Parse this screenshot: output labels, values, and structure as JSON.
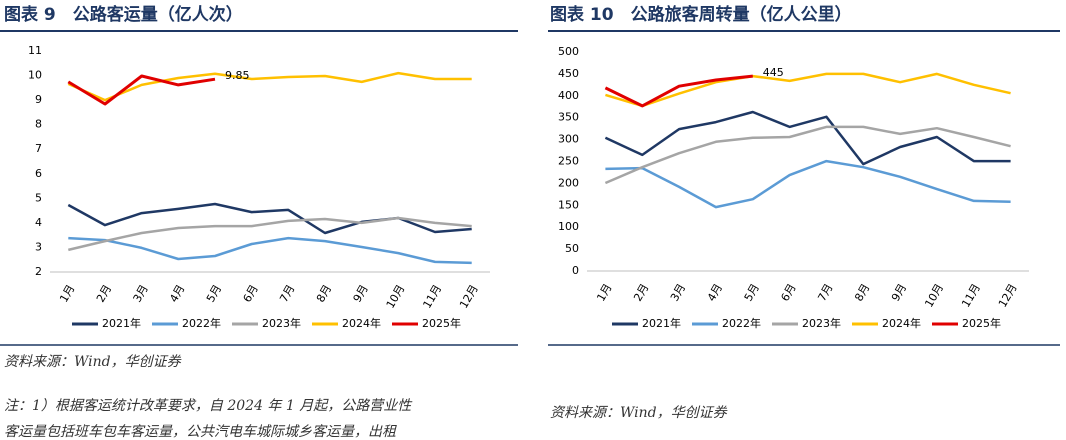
{
  "chart_data": [
    {
      "type": "line",
      "title": "图表 9　公路客运量（亿人次）",
      "categories": [
        "1月",
        "2月",
        "3月",
        "4月",
        "5月",
        "6月",
        "7月",
        "8月",
        "9月",
        "10月",
        "11月",
        "12月"
      ],
      "series": [
        {
          "name": "2021年",
          "color": "#1f3864",
          "values": [
            4.73,
            3.91,
            4.4,
            4.57,
            4.77,
            4.44,
            4.53,
            3.59,
            4.04,
            4.2,
            3.63,
            3.75
          ]
        },
        {
          "name": "2022年",
          "color": "#5b9bd5",
          "values": [
            3.38,
            3.3,
            2.98,
            2.53,
            2.65,
            3.14,
            3.38,
            3.26,
            3.02,
            2.77,
            2.41,
            2.37
          ]
        },
        {
          "name": "2023年",
          "color": "#a5a5a5",
          "values": [
            2.9,
            3.26,
            3.59,
            3.79,
            3.87,
            3.87,
            4.08,
            4.16,
            4.0,
            4.2,
            4.0,
            3.87
          ]
        },
        {
          "name": "2024年",
          "color": "#ffc000",
          "values": [
            9.66,
            9.0,
            9.62,
            9.9,
            10.07,
            9.86,
            9.94,
            9.98,
            9.74,
            10.1,
            9.86,
            9.86
          ]
        },
        {
          "name": "2025年",
          "color": "#e00000",
          "show_last_value": true,
          "values": [
            9.74,
            8.84,
            9.98,
            9.62,
            9.85,
            null,
            null,
            null,
            null,
            null,
            null,
            null
          ]
        }
      ],
      "ylim": [
        2,
        11
      ],
      "yticks": [
        2,
        3,
        4,
        5,
        6,
        7,
        8,
        9,
        10,
        11
      ],
      "grid": false,
      "legend": "bottom"
    },
    {
      "type": "line",
      "title": "图表 10　公路旅客周转量（亿人公里）",
      "categories": [
        "1月",
        "2月",
        "3月",
        "4月",
        "5月",
        "6月",
        "7月",
        "8月",
        "9月",
        "10月",
        "11月",
        "12月"
      ],
      "series": [
        {
          "name": "2021年",
          "color": "#1f3864",
          "values": [
            304,
            265,
            324,
            340,
            363,
            329,
            352,
            244,
            283,
            306,
            251,
            251
          ]
        },
        {
          "name": "2022年",
          "color": "#5b9bd5",
          "values": [
            233,
            235,
            192,
            146,
            164,
            219,
            251,
            237,
            215,
            187,
            160,
            158
          ]
        },
        {
          "name": "2023年",
          "color": "#a5a5a5",
          "values": [
            201,
            237,
            269,
            295,
            304,
            306,
            329,
            329,
            313,
            326,
            306,
            285
          ]
        },
        {
          "name": "2024年",
          "color": "#ffc000",
          "values": [
            402,
            377,
            405,
            431,
            445,
            434,
            450,
            450,
            431,
            450,
            425,
            406
          ]
        },
        {
          "name": "2025年",
          "color": "#e00000",
          "show_last_value": true,
          "values": [
            418,
            377,
            422,
            436,
            445,
            null,
            null,
            null,
            null,
            null,
            null,
            null
          ]
        }
      ],
      "ylim": [
        0,
        500
      ],
      "yticks": [
        0,
        50,
        100,
        150,
        200,
        250,
        300,
        350,
        400,
        450,
        500
      ],
      "grid": false,
      "legend": "bottom"
    }
  ],
  "left": {
    "source": "资料来源：Wind，华创证券",
    "note": [
      "注：1）根据客运统计改革要求，自 2024 年 1 月起，公路营业性",
      "客运量包括班车包车客运量，公共汽电车城际城乡客运量，出租"
    ]
  },
  "right": {
    "source": "资料来源：Wind，华创证券"
  }
}
